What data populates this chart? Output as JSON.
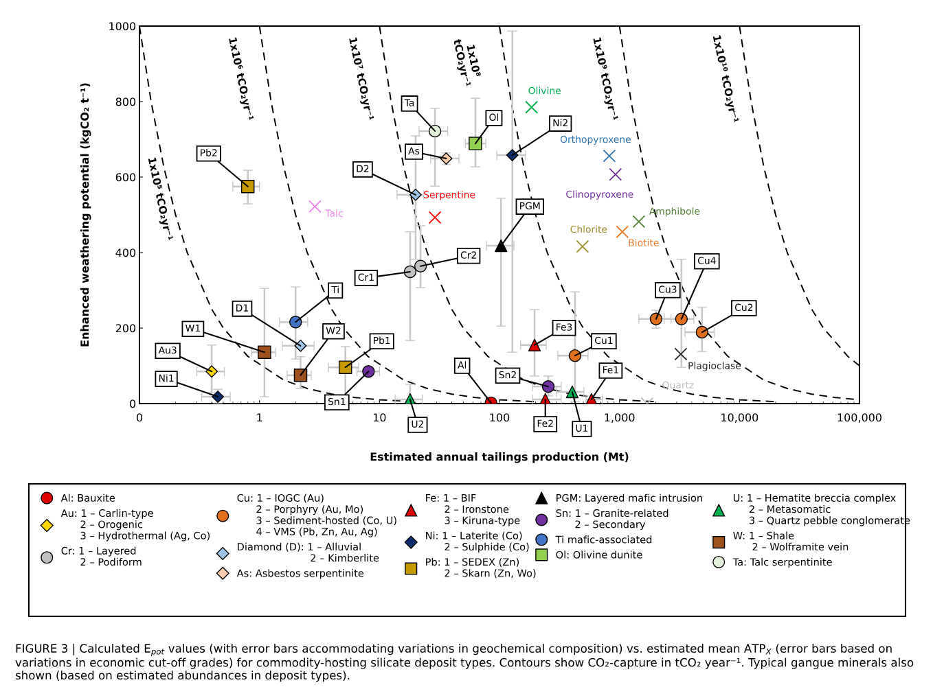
{
  "chart_data": {
    "type": "scatter",
    "xlabel": "Estimated annual tailings production (Mt)",
    "ylabel": "Enhanced weathering potential (kgCO₂ t⁻¹)",
    "log": "x",
    "xlim": [
      0.1,
      100000
    ],
    "ylim": [
      0,
      1000
    ],
    "xticks": [
      {
        "value": 0.1,
        "label": "0"
      },
      1,
      10,
      100,
      {
        "value": 1000,
        "label": "1,000"
      },
      {
        "value": 10000,
        "label": "10,000"
      },
      {
        "value": 100000,
        "label": "100,000"
      }
    ],
    "yticks": [
      0,
      200,
      400,
      600,
      800,
      1000
    ],
    "legend": "bottom",
    "series": [
      {
        "type": "line",
        "line_style": "dashed",
        "marker": "none",
        "color": "#000000",
        "x": [
          0.1,
          0.125,
          0.16,
          0.2,
          0.25,
          0.4,
          0.5,
          0.8,
          1.6,
          2.5,
          4,
          6.3,
          10,
          20
        ],
        "values": [
          1000,
          800,
          625,
          500,
          400,
          250,
          200,
          125,
          62,
          40,
          25,
          16,
          10,
          5
        ]
      },
      {
        "type": "line",
        "line_style": "dashed",
        "marker": "none",
        "color": "#000000",
        "x": [
          1,
          1.25,
          1.6,
          2,
          2.5,
          4,
          5,
          8,
          16,
          25,
          40,
          63,
          100,
          200
        ],
        "values": [
          1000,
          800,
          625,
          500,
          400,
          250,
          200,
          125,
          62,
          40,
          25,
          16,
          10,
          5
        ]
      },
      {
        "type": "line",
        "line_style": "dashed",
        "marker": "none",
        "color": "#000000",
        "x": [
          10,
          12.5,
          16,
          20,
          25,
          40,
          50,
          80,
          160,
          250,
          400,
          630,
          1000,
          2000
        ],
        "values": [
          1000,
          800,
          625,
          500,
          400,
          250,
          200,
          125,
          62,
          40,
          25,
          16,
          10,
          5
        ]
      },
      {
        "type": "line",
        "line_style": "dashed",
        "marker": "none",
        "color": "#000000",
        "x": [
          100,
          125,
          160,
          200,
          250,
          400,
          500,
          800,
          1600,
          2500,
          4000,
          6300,
          10000,
          20000
        ],
        "values": [
          1000,
          800,
          625,
          500,
          400,
          250,
          200,
          125,
          62,
          40,
          25,
          16,
          10,
          5
        ]
      },
      {
        "type": "line",
        "line_style": "dashed",
        "marker": "none",
        "color": "#000000",
        "x": [
          1000,
          1250,
          1600,
          2000,
          2500,
          4000,
          5000,
          8000,
          16000,
          25000,
          40000,
          63000,
          100000
        ],
        "values": [
          1000,
          800,
          625,
          500,
          400,
          250,
          200,
          125,
          62,
          40,
          25,
          16,
          10
        ]
      },
      {
        "type": "line",
        "line_style": "dashed",
        "marker": "none",
        "color": "#000000",
        "x": [
          10000,
          12500,
          16000,
          20000,
          25000,
          40000,
          50000,
          80000,
          100000
        ],
        "values": [
          1000,
          800,
          625,
          500,
          400,
          250,
          200,
          125,
          100
        ]
      },
      {
        "name": "Al: Bauxite",
        "marker": "circle",
        "color": "#e00000",
        "x": [
          85
        ],
        "values": [
          2
        ]
      },
      {
        "name": "Au: 1 – Carlin-type\n      2 – Orogenic\n      3 – Hydrothermal (Ag, Co)",
        "marker": "diamond",
        "color": "#ffd700",
        "x": [
          0.4
        ],
        "values": [
          85
        ],
        "xerrors": [
          [
            0.3,
            0.51
          ]
        ],
        "errors": [
          [
            29,
            155
          ]
        ]
      },
      {
        "name": "Cr: 1 – Layered\n      2 – Podiform",
        "marker": "circle",
        "color": "#c0c0c0",
        "x": [
          18,
          22
        ],
        "values": [
          349,
          364
        ],
        "errors": [
          [
            167,
            455
          ],
          [
            307,
            471
          ]
        ]
      },
      {
        "name": "Cu: 1 – IOGC (Au)\n      2 – Porphyry (Au, Mo)\n      3 – Sediment-hosted (Co, U)\n      4 – VMS (Pb, Zn, Au, Ag)",
        "marker": "circle",
        "color": "#e0701e",
        "x": [
          426,
          4875,
          2018,
          3283
        ],
        "values": [
          127,
          189,
          224,
          224
        ],
        "xerrors": [
          [
            306,
            547
          ],
          [
            3510,
            6180
          ],
          [
            1450,
            2692
          ],
          [
            2360,
            4160
          ]
        ],
        "errors": [
          [
            5,
            296
          ],
          [
            138,
            255
          ],
          [
            200,
            247
          ],
          [
            96,
            382
          ]
        ]
      },
      {
        "name": "Diamond (D): 1 – Alluvial\n                       2 – Kimberlite",
        "marker": "diamond",
        "color": "#9dc3e6",
        "x": [
          2.2,
          20
        ],
        "values": [
          153,
          553
        ],
        "xerrors": [
          [
            1.55,
            2.85
          ],
          [
            14,
            23.4
          ]
        ],
        "errors": [
          null,
          [
            382,
            709
          ]
        ]
      },
      {
        "name": "As: Asbestos serpentinite",
        "marker": "diamond",
        "color": "#f8cbad",
        "x": [
          36
        ],
        "values": [
          649
        ],
        "xerrors": [
          [
            26.7,
            46
          ]
        ],
        "errors": [
          [
            633,
            664
          ]
        ]
      },
      {
        "name": "Fe: 1 – BIF\n      2 – Ironstone\n      3 – Kiruna-type",
        "marker": "triangle",
        "color": "#e00000",
        "x": [
          584,
          241,
          196
        ],
        "values": [
          11,
          11,
          155
        ],
        "xerrors": [
          [
            526,
            722
          ],
          [
            188,
            327
          ],
          [
            150,
            245
          ]
        ],
        "errors": [
          null,
          null,
          [
            73,
            249
          ]
        ]
      },
      {
        "name": "Ni: 1 – Laterite (Co)\n      2 – Sulphide (Co)",
        "marker": "diamond",
        "color": "#0d2d6c",
        "x": [
          0.45,
          128
        ],
        "values": [
          18,
          658
        ],
        "xerrors": [
          [
            0.33,
            0.57
          ],
          [
            95,
            165
          ]
        ],
        "errors": [
          [
            0,
            38
          ],
          [
            136,
            987
          ]
        ]
      },
      {
        "name": "Pb: 1 – SEDEX (Zn)\n      2 – Skarn (Zn, Wo)",
        "marker": "square",
        "color": "#c49a00",
        "x": [
          5.2,
          0.8
        ],
        "values": [
          96,
          575
        ],
        "xerrors": [
          [
            3.75,
            6.7
          ],
          [
            0.6,
            1.0
          ]
        ],
        "errors": [
          [
            5,
            151
          ],
          [
            529,
            618
          ]
        ]
      },
      {
        "name": "PGM: Layered mafic intrusion",
        "marker": "triangle",
        "color": "#000000",
        "x": [
          103
        ],
        "values": [
          418
        ],
        "xerrors": [
          [
            78,
            132
          ]
        ],
        "errors": [
          [
            205,
            544
          ]
        ]
      },
      {
        "name": "Sn: 1 – Granite-related\n      2 – Secondary",
        "marker": "circle",
        "color": "#7030a0",
        "x": [
          8.1,
          255
        ],
        "values": [
          85,
          45
        ],
        "xerrors": [
          [
            6.5,
            10
          ],
          [
            188,
            327
          ]
        ],
        "errors": [
          null,
          [
            20,
            73
          ]
        ]
      },
      {
        "name": "Ti mafic-associated",
        "marker": "circle",
        "color": "#4472c4",
        "x": [
          2.0
        ],
        "values": [
          216
        ],
        "xerrors": [
          [
            1.47,
            2.52
          ]
        ],
        "errors": [
          [
            118,
            309
          ]
        ]
      },
      {
        "name": "Ol: Olivine dunite",
        "marker": "square",
        "color": "#92d050",
        "x": [
          63
        ],
        "values": [
          689
        ],
        "xerrors": [
          [
            52,
            77
          ]
        ],
        "errors": [
          [
            627,
            809
          ]
        ]
      },
      {
        "name": "U: 1 – Hematite breccia complex\n     2 – Metasomatic\n     3 – Quartz pebble conglomerate",
        "marker": "triangle",
        "color": "#00b050",
        "x": [
          404,
          18
        ],
        "values": [
          31,
          11
        ],
        "xerrors": [
          [
            298,
            505
          ],
          [
            13.5,
            22.8
          ]
        ],
        "errors": [
          null,
          [
            0,
            51
          ]
        ]
      },
      {
        "name": "W: 1 – Shale\n      2 – Wolframite vein",
        "marker": "square",
        "color": "#a0521e",
        "x": [
          1.1,
          2.2
        ],
        "values": [
          136,
          75
        ],
        "xerrors": [
          [
            0.86,
            1.36
          ],
          [
            1.7,
            2.7
          ]
        ],
        "errors": [
          [
            18,
            305
          ],
          [
            40,
            124
          ]
        ]
      },
      {
        "name": "Ta: Talc serpentinite",
        "marker": "circle",
        "color": "#e2f0d9",
        "x": [
          29
        ],
        "values": [
          722
        ],
        "xerrors": [
          [
            21.4,
            37
          ]
        ],
        "errors": [
          [
            576,
            782
          ]
        ]
      },
      {
        "name": "Talc",
        "marker": "cross",
        "color": "#ee82ee",
        "x": [
          2.9
        ],
        "values": [
          522
        ]
      },
      {
        "name": "Serpentine",
        "marker": "cross",
        "color": "#ff0000",
        "x": [
          29
        ],
        "values": [
          493
        ]
      },
      {
        "name": "Olivine",
        "marker": "cross",
        "color": "#00b050",
        "x": [
          185
        ],
        "values": [
          785
        ]
      },
      {
        "name": "Orthopyroxene",
        "marker": "cross",
        "color": "#2e75b6",
        "x": [
          823
        ],
        "values": [
          656
        ]
      },
      {
        "name": "Clinopyroxene",
        "marker": "cross",
        "color": "#7030a0",
        "x": [
          926
        ],
        "values": [
          607
        ]
      },
      {
        "name": "Amphibole",
        "marker": "cross",
        "color": "#548235",
        "x": [
          1450
        ],
        "values": [
          482
        ]
      },
      {
        "name": "Biotite",
        "marker": "cross",
        "color": "#ed7d31",
        "x": [
          1056
        ],
        "values": [
          455
        ]
      },
      {
        "name": "Chlorite",
        "marker": "cross",
        "color": "#9c8c2c",
        "x": [
          492
        ],
        "values": [
          416
        ]
      },
      {
        "name": "Plagioclase",
        "marker": "cross",
        "color": "#262626",
        "x": [
          3245
        ],
        "values": [
          131
        ]
      },
      {
        "name": "Quartz",
        "marker": "cross",
        "color": "#bfbfbf",
        "x": [
          1700
        ],
        "values": [
          0
        ]
      }
    ],
    "annotations": [
      {
        "text": "Al",
        "x": 85,
        "y": 2
      },
      {
        "text": "Au3",
        "x": 0.4,
        "y": 85
      },
      {
        "text": "Cr1",
        "x": 18,
        "y": 349
      },
      {
        "text": "Cr2",
        "x": 22,
        "y": 364
      },
      {
        "text": "Cu1",
        "x": 426,
        "y": 127
      },
      {
        "text": "Cu2",
        "x": 4875,
        "y": 189
      },
      {
        "text": "Cu3",
        "x": 2018,
        "y": 224
      },
      {
        "text": "Cu4",
        "x": 3283,
        "y": 224
      },
      {
        "text": "D1",
        "x": 2.2,
        "y": 153
      },
      {
        "text": "D2",
        "x": 20,
        "y": 553
      },
      {
        "text": "As",
        "x": 36,
        "y": 649
      },
      {
        "text": "Fe1",
        "x": 584,
        "y": 11
      },
      {
        "text": "Fe2",
        "x": 241,
        "y": 11
      },
      {
        "text": "Fe3",
        "x": 196,
        "y": 155
      },
      {
        "text": "Ni1",
        "x": 0.45,
        "y": 18
      },
      {
        "text": "Ni2",
        "x": 128,
        "y": 658
      },
      {
        "text": "Pb1",
        "x": 5.2,
        "y": 96
      },
      {
        "text": "Pb2",
        "x": 0.8,
        "y": 575
      },
      {
        "text": "PGM",
        "x": 103,
        "y": 418
      },
      {
        "text": "Sn1",
        "x": 8.1,
        "y": 85
      },
      {
        "text": "Sn2",
        "x": 255,
        "y": 45
      },
      {
        "text": "Ti",
        "x": 2.0,
        "y": 216
      },
      {
        "text": "Ol",
        "x": 63,
        "y": 689
      },
      {
        "text": "U1",
        "x": 404,
        "y": 31
      },
      {
        "text": "U2",
        "x": 18,
        "y": 11
      },
      {
        "text": "W1",
        "x": 1.1,
        "y": 136
      },
      {
        "text": "W2",
        "x": 2.2,
        "y": 75
      },
      {
        "text": "Ta",
        "x": 29,
        "y": 722
      },
      "1x10⁵ tCO₂yr⁻¹",
      "1x10⁶ tCO₂yr⁻¹",
      "1x10⁷ tCO₂yr⁻¹",
      "1x10⁸\ntCO₂yr⁻¹",
      "1x10⁹ tCO₂yr⁻¹",
      "1x10¹⁰ tCO₂yr⁻¹",
      "FIGURE 3 | Calculated E$_{pot}$ values (with error bars accommodating variations in geochemical composition) vs. estimated mean ATP$_{X}$ (error bars based on variations in economic cut-off grades) for commodity-hosting silicate deposit types. Contours show CO₂-capture in tCO₂ year⁻¹. Typical gangue minerals also shown (based on estimated abundances in deposit types)."
    ]
  }
}
